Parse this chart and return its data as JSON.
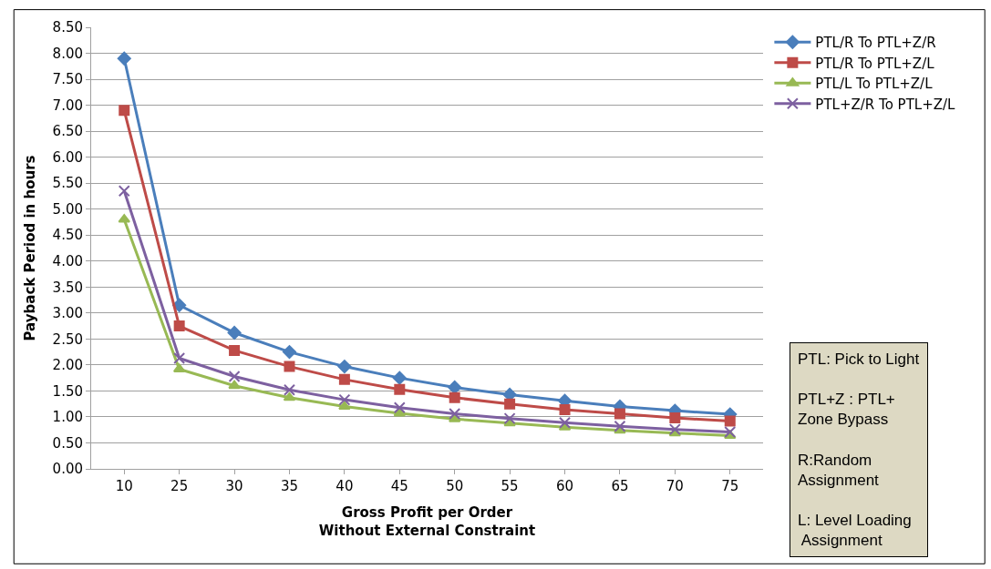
{
  "chart_data": {
    "type": "line",
    "xlabel": "Gross Profit per Order\nWithout External Constraint",
    "ylabel": "Payback Period in hours",
    "categories": [
      "10",
      "25",
      "30",
      "35",
      "40",
      "45",
      "50",
      "55",
      "60",
      "65",
      "70",
      "75"
    ],
    "series": [
      {
        "name": "PTL/R To PTL+Z/R",
        "color": "#4a7ebb",
        "marker": "diamond",
        "values": [
          7.9,
          3.15,
          2.62,
          2.25,
          1.97,
          1.75,
          1.57,
          1.43,
          1.31,
          1.2,
          1.12,
          1.05
        ]
      },
      {
        "name": "PTL/R To PTL+Z/L",
        "color": "#be4b48",
        "marker": "square",
        "values": [
          6.9,
          2.75,
          2.28,
          1.97,
          1.72,
          1.53,
          1.37,
          1.25,
          1.14,
          1.06,
          0.98,
          0.92
        ]
      },
      {
        "name": "PTL/L To PTL+Z/L",
        "color": "#98b954",
        "marker": "triangle",
        "values": [
          4.8,
          1.92,
          1.6,
          1.37,
          1.2,
          1.07,
          0.96,
          0.88,
          0.8,
          0.74,
          0.69,
          0.64
        ]
      },
      {
        "name": "PTL+Z/R To PTL+Z/L",
        "color": "#7d60a0",
        "marker": "cross",
        "values": [
          5.35,
          2.13,
          1.78,
          1.52,
          1.33,
          1.18,
          1.06,
          0.97,
          0.89,
          0.82,
          0.76,
          0.71
        ]
      }
    ],
    "ylim": [
      0,
      8.5
    ],
    "yticks": [
      {
        "value": 0,
        "label": "0.00"
      },
      {
        "value": 0.5,
        "label": "0.50"
      },
      {
        "value": 1,
        "label": "1.00"
      },
      {
        "value": 1.5,
        "label": "1.50"
      },
      {
        "value": 2,
        "label": "2.00"
      },
      {
        "value": 2.5,
        "label": "2.50"
      },
      {
        "value": 3,
        "label": "3.00"
      },
      {
        "value": 3.5,
        "label": "3.50"
      },
      {
        "value": 4,
        "label": "4.00"
      },
      {
        "value": 4.5,
        "label": "4.50"
      },
      {
        "value": 5,
        "label": "5.00"
      },
      {
        "value": 5.5,
        "label": "5.50"
      },
      {
        "value": 6,
        "label": "6.00"
      },
      {
        "value": 6.5,
        "label": "6.50"
      },
      {
        "value": 7,
        "label": "7.00"
      },
      {
        "value": 7.5,
        "label": "7.50"
      },
      {
        "value": 8,
        "label": "8.00"
      },
      {
        "value": 8.5,
        "label": "8.50"
      }
    ],
    "grid": "y",
    "legend": "top right",
    "line_style": "solid",
    "annotations": [
      "PTL: Pick to Light\n\nPTL+Z : PTL+\nZone Bypass\n\nR:Random\nAssignment\n\nL: Level Loading\n Assignment"
    ]
  }
}
